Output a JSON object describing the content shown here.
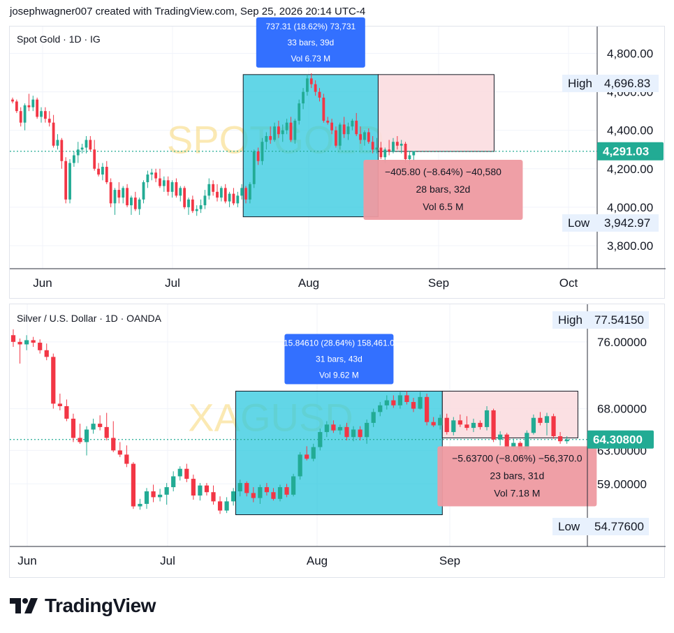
{
  "header": {
    "attribution": "josephwagner007 created with TradingView.com, Sep 25, 2026 20:14 UTC-4"
  },
  "footer": {
    "brand": "TradingView"
  },
  "colors": {
    "up": "#22ab94",
    "down": "#f23645",
    "cyan_box": "#2ec8df",
    "pink_box": "#fbdde0",
    "blue_label": "#3370ff",
    "red_label": "#ee9aa1",
    "last_price": "#22ab94",
    "hl_bg": "#e8f1fd"
  },
  "chart_data": [
    {
      "type": "candlestick",
      "title": "Spot Gold · 1D · IG",
      "watermark": "SPOTGOLD",
      "x_tick_labels": [
        "Jun",
        "Jul",
        "Aug",
        "Sep",
        "Oct"
      ],
      "y_tick_labels": [
        "4,800.00",
        "4,600.00",
        "4,400.00",
        "4,200.00",
        "4,000.00",
        "3,800.00"
      ],
      "y_ticks": [
        4800,
        4600,
        4400,
        4200,
        4000,
        3800
      ],
      "ylim": [
        3680,
        4940
      ],
      "last_price": 4291.03,
      "last_price_label": "4,291.03",
      "high": {
        "label": "High",
        "value": "4,696.83"
      },
      "low": {
        "label": "Low",
        "value": "3,942.97"
      },
      "measure_up": {
        "change": "737.31 (18.62%) 73,731",
        "bars": "33 bars, 39d",
        "vol": "Vol 6.73 M",
        "from": 3950,
        "to": 4690
      },
      "measure_down": {
        "change": "−405.80 (−8.64%) −40,580",
        "bars": "28 bars, 32d",
        "vol": "Vol 6.5 M",
        "from": 4690,
        "to": 4290
      },
      "ohlc": [
        [
          4560,
          4570,
          4540,
          4550
        ],
        [
          4550,
          4560,
          4490,
          4500
        ],
        [
          4500,
          4520,
          4420,
          4440
        ],
        [
          4440,
          4540,
          4400,
          4530
        ],
        [
          4530,
          4590,
          4500,
          4520
        ],
        [
          4520,
          4580,
          4500,
          4560
        ],
        [
          4560,
          4570,
          4460,
          4470
        ],
        [
          4470,
          4520,
          4440,
          4500
        ],
        [
          4500,
          4520,
          4440,
          4460
        ],
        [
          4460,
          4500,
          4420,
          4440
        ],
        [
          4440,
          4480,
          4310,
          4320
        ],
        [
          4320,
          4380,
          4300,
          4350
        ],
        [
          4350,
          4360,
          4200,
          4240
        ],
        [
          4240,
          4260,
          4020,
          4040
        ],
        [
          4040,
          4250,
          4020,
          4230
        ],
        [
          4230,
          4290,
          4210,
          4270
        ],
        [
          4270,
          4340,
          4230,
          4300
        ],
        [
          4300,
          4330,
          4280,
          4310
        ],
        [
          4310,
          4370,
          4280,
          4350
        ],
        [
          4350,
          4370,
          4290,
          4300
        ],
        [
          4300,
          4350,
          4190,
          4200
        ],
        [
          4200,
          4230,
          4160,
          4170
        ],
        [
          4170,
          4230,
          4140,
          4210
        ],
        [
          4210,
          4240,
          4120,
          4130
        ],
        [
          4130,
          4150,
          4000,
          4020
        ],
        [
          4020,
          4100,
          3960,
          4090
        ],
        [
          4090,
          4130,
          4020,
          4050
        ],
        [
          4050,
          4110,
          4020,
          4100
        ],
        [
          4100,
          4120,
          4000,
          4010
        ],
        [
          4010,
          4060,
          3960,
          4050
        ],
        [
          4050,
          4080,
          3980,
          3990
        ],
        [
          3990,
          4050,
          3960,
          4040
        ],
        [
          4040,
          4140,
          4020,
          4130
        ],
        [
          4130,
          4190,
          4100,
          4170
        ],
        [
          4170,
          4200,
          4140,
          4180
        ],
        [
          4180,
          4200,
          4130,
          4150
        ],
        [
          4150,
          4200,
          4100,
          4110
        ],
        [
          4110,
          4160,
          4080,
          4140
        ],
        [
          4140,
          4160,
          4060,
          4080
        ],
        [
          4080,
          4140,
          4050,
          4130
        ],
        [
          4130,
          4150,
          4050,
          4060
        ],
        [
          4060,
          4110,
          4030,
          4100
        ],
        [
          4100,
          4110,
          3990,
          4000
        ],
        [
          4000,
          4050,
          3960,
          4040
        ],
        [
          4040,
          4060,
          3970,
          3980
        ],
        [
          3980,
          4010,
          3955,
          3990
        ],
        [
          3990,
          4040,
          3970,
          4010
        ],
        [
          4010,
          4090,
          3990,
          4060
        ],
        [
          4060,
          4150,
          4040,
          4120
        ],
        [
          4120,
          4140,
          4060,
          4080
        ],
        [
          4080,
          4120,
          4030,
          4050
        ],
        [
          4050,
          4110,
          4030,
          4100
        ],
        [
          4100,
          4120,
          4020,
          4030
        ],
        [
          4030,
          4080,
          4000,
          4070
        ],
        [
          4070,
          4100,
          4010,
          4020
        ],
        [
          4020,
          4080,
          4000,
          4060
        ],
        [
          4060,
          4120,
          4040,
          4100
        ],
        [
          4100,
          4110,
          4020,
          4040
        ],
        [
          4040,
          4130,
          4020,
          4120
        ],
        [
          4120,
          4300,
          4100,
          4290
        ],
        [
          4290,
          4310,
          4220,
          4240
        ],
        [
          4240,
          4360,
          4220,
          4340
        ],
        [
          4340,
          4390,
          4300,
          4370
        ],
        [
          4370,
          4420,
          4330,
          4350
        ],
        [
          4350,
          4440,
          4340,
          4420
        ],
        [
          4420,
          4450,
          4360,
          4380
        ],
        [
          4380,
          4430,
          4340,
          4400
        ],
        [
          4400,
          4460,
          4380,
          4440
        ],
        [
          4440,
          4470,
          4340,
          4350
        ],
        [
          4350,
          4460,
          4330,
          4450
        ],
        [
          4450,
          4560,
          4430,
          4540
        ],
        [
          4540,
          4620,
          4510,
          4600
        ],
        [
          4600,
          4690,
          4580,
          4670
        ],
        [
          4670,
          4697,
          4620,
          4640
        ],
        [
          4640,
          4660,
          4580,
          4600
        ],
        [
          4600,
          4620,
          4550,
          4570
        ],
        [
          4570,
          4590,
          4440,
          4450
        ],
        [
          4450,
          4470,
          4430,
          4440
        ],
        [
          4440,
          4460,
          4380,
          4400
        ],
        [
          4400,
          4420,
          4310,
          4320
        ],
        [
          4320,
          4440,
          4300,
          4430
        ],
        [
          4430,
          4470,
          4360,
          4380
        ],
        [
          4380,
          4440,
          4350,
          4420
        ],
        [
          4420,
          4460,
          4400,
          4450
        ],
        [
          4450,
          4490,
          4370,
          4380
        ],
        [
          4380,
          4420,
          4330,
          4350
        ],
        [
          4350,
          4400,
          4320,
          4390
        ],
        [
          4390,
          4410,
          4330,
          4340
        ],
        [
          4340,
          4370,
          4280,
          4300
        ],
        [
          4300,
          4360,
          4280,
          4310
        ],
        [
          4310,
          4340,
          4250,
          4260
        ],
        [
          4260,
          4310,
          4230,
          4300
        ],
        [
          4300,
          4350,
          4270,
          4290
        ],
        [
          4290,
          4360,
          4280,
          4340
        ],
        [
          4340,
          4370,
          4300,
          4320
        ],
        [
          4320,
          4350,
          4280,
          4330
        ],
        [
          4330,
          4340,
          4230,
          4250
        ],
        [
          4250,
          4290,
          4220,
          4270
        ],
        [
          4270,
          4290,
          4240,
          4291
        ]
      ]
    },
    {
      "type": "candlestick",
      "title": "Silver / U.S. Dollar · 1D · OANDA",
      "watermark": "XAGUSD",
      "x_tick_labels": [
        "Jun",
        "Jul",
        "Aug",
        "Sep"
      ],
      "y_tick_labels": [
        "76.00000",
        "68.00000",
        "63.00000",
        "59.00000"
      ],
      "y_ticks": [
        76,
        68,
        63,
        59
      ],
      "ylim": [
        51.5,
        80.5
      ],
      "last_price": 64.308,
      "last_price_label": "64.30800",
      "high": {
        "label": "High",
        "value": "77.54150"
      },
      "low": {
        "label": "Low",
        "value": "54.77600"
      },
      "measure_up": {
        "change": "15.84610 (28.64%) 158,461.0",
        "bars": "31 bars, 43d",
        "vol": "Vol 9.62 M",
        "from": 55.3,
        "to": 70.1
      },
      "measure_down": {
        "change": "−5.63700 (−8.06%) −56,370.0",
        "bars": "23 bars, 31d",
        "vol": "Vol 7.18 M",
        "from": 70.1,
        "to": 64.5
      },
      "ohlc": [
        [
          76.8,
          77.5,
          75.4,
          76.0
        ],
        [
          76.0,
          76.4,
          73.4,
          75.7
        ],
        [
          75.7,
          76.8,
          75.0,
          76.2
        ],
        [
          76.2,
          76.6,
          75.4,
          75.9
        ],
        [
          75.9,
          76.3,
          74.6,
          75.0
        ],
        [
          75.0,
          75.8,
          73.8,
          74.2
        ],
        [
          74.2,
          74.6,
          68.0,
          68.6
        ],
        [
          68.6,
          69.8,
          67.8,
          68.3
        ],
        [
          68.3,
          69.1,
          66.5,
          66.8
        ],
        [
          66.8,
          67.4,
          64.0,
          64.5
        ],
        [
          64.5,
          66.2,
          63.8,
          64.0
        ],
        [
          64.0,
          65.9,
          62.4,
          65.5
        ],
        [
          65.5,
          66.8,
          65.0,
          66.2
        ],
        [
          66.2,
          67.2,
          65.4,
          65.8
        ],
        [
          65.8,
          67.5,
          64.2,
          64.5
        ],
        [
          64.5,
          66.5,
          62.8,
          63.0
        ],
        [
          63.0,
          64.0,
          62.2,
          62.5
        ],
        [
          62.5,
          63.6,
          61.0,
          61.4
        ],
        [
          61.4,
          61.6,
          56.0,
          56.3
        ],
        [
          56.3,
          57.2,
          55.9,
          56.6
        ],
        [
          56.6,
          58.5,
          56.0,
          58.1
        ],
        [
          58.1,
          58.9,
          56.8,
          57.4
        ],
        [
          57.4,
          58.4,
          56.9,
          57.7
        ],
        [
          57.7,
          59.1,
          56.5,
          58.6
        ],
        [
          58.6,
          60.5,
          58.1,
          59.9
        ],
        [
          59.9,
          61.1,
          59.4,
          60.8
        ],
        [
          60.8,
          61.4,
          59.2,
          59.6
        ],
        [
          59.6,
          60.1,
          57.1,
          57.6
        ],
        [
          57.6,
          59.1,
          57.0,
          58.8
        ],
        [
          58.8,
          59.1,
          57.6,
          58.0
        ],
        [
          58.0,
          58.8,
          56.5,
          56.9
        ],
        [
          56.9,
          57.5,
          55.4,
          55.8
        ],
        [
          55.8,
          57.4,
          55.5,
          56.9
        ],
        [
          56.9,
          58.5,
          56.4,
          58.1
        ],
        [
          58.1,
          59.5,
          57.5,
          59.1
        ],
        [
          59.1,
          59.3,
          57.5,
          57.9
        ],
        [
          57.9,
          58.6,
          56.8,
          57.3
        ],
        [
          57.3,
          58.9,
          56.6,
          58.6
        ],
        [
          58.6,
          59.1,
          57.6,
          58.0
        ],
        [
          58.0,
          58.5,
          57.0,
          57.2
        ],
        [
          57.2,
          58.9,
          56.9,
          58.6
        ],
        [
          58.6,
          59.0,
          57.4,
          57.7
        ],
        [
          57.7,
          60.2,
          57.5,
          59.9
        ],
        [
          59.9,
          62.8,
          59.5,
          62.5
        ],
        [
          62.5,
          63.5,
          61.8,
          62.0
        ],
        [
          62.0,
          63.8,
          61.7,
          63.4
        ],
        [
          63.4,
          65.6,
          63.0,
          65.2
        ],
        [
          65.2,
          66.5,
          64.6,
          66.1
        ],
        [
          66.1,
          66.6,
          65.1,
          65.4
        ],
        [
          65.4,
          66.1,
          64.9,
          65.8
        ],
        [
          65.8,
          66.3,
          64.2,
          64.6
        ],
        [
          64.6,
          65.9,
          64.1,
          65.5
        ],
        [
          65.5,
          65.9,
          64.2,
          64.6
        ],
        [
          64.6,
          66.7,
          63.8,
          66.3
        ],
        [
          66.3,
          68.0,
          65.8,
          67.6
        ],
        [
          67.6,
          68.8,
          67.1,
          68.4
        ],
        [
          68.4,
          69.6,
          67.9,
          69.0
        ],
        [
          69.0,
          69.6,
          68.1,
          68.4
        ],
        [
          68.4,
          70.0,
          68.0,
          69.6
        ],
        [
          69.6,
          70.1,
          68.5,
          68.8
        ],
        [
          68.8,
          69.3,
          67.6,
          68.0
        ],
        [
          68.0,
          70.0,
          67.9,
          69.4
        ],
        [
          69.4,
          69.8,
          66.0,
          66.4
        ],
        [
          66.4,
          67.0,
          65.8,
          66.0
        ],
        [
          66.0,
          67.3,
          65.5,
          66.9
        ],
        [
          66.9,
          67.4,
          64.9,
          65.2
        ],
        [
          65.2,
          67.0,
          64.8,
          66.6
        ],
        [
          66.6,
          67.3,
          65.8,
          66.1
        ],
        [
          66.1,
          67.1,
          65.4,
          65.7
        ],
        [
          65.7,
          66.8,
          65.2,
          66.3
        ],
        [
          66.3,
          66.6,
          65.5,
          65.8
        ],
        [
          65.8,
          68.3,
          65.4,
          67.8
        ],
        [
          67.8,
          68.0,
          64.0,
          64.3
        ],
        [
          64.3,
          65.3,
          63.6,
          64.9
        ],
        [
          64.9,
          65.1,
          63.0,
          63.4
        ],
        [
          63.4,
          64.4,
          63.0,
          63.9
        ],
        [
          63.9,
          64.1,
          62.6,
          63.1
        ],
        [
          63.1,
          65.4,
          62.9,
          65.1
        ],
        [
          65.1,
          67.3,
          64.9,
          66.9
        ],
        [
          66.9,
          67.6,
          66.0,
          66.3
        ],
        [
          66.3,
          67.5,
          64.8,
          67.1
        ],
        [
          67.1,
          67.4,
          64.4,
          64.7
        ],
        [
          64.7,
          65.2,
          63.8,
          64.1
        ],
        [
          64.1,
          64.7,
          63.8,
          64.308
        ]
      ]
    }
  ]
}
